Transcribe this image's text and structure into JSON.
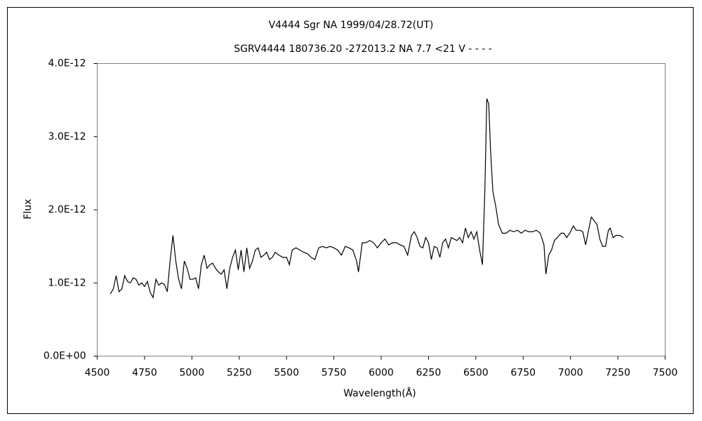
{
  "chart_data": {
    "type": "line",
    "title": "V4444 Sgr    NA    1999/04/28.72(UT)",
    "subtitle": "SGRV4444 180736.20 -272013.2 NA 7.7 <21 V - - - -",
    "x_label": "Wavelength(Å)",
    "y_label": "Flux",
    "xlim": [
      4500,
      7500
    ],
    "xticks": [
      4500,
      4750,
      5000,
      5250,
      5500,
      5750,
      6000,
      6250,
      6500,
      6750,
      7000,
      7250,
      7500
    ],
    "ylim": [
      0,
      4e-12
    ],
    "yticks": [
      {
        "value": 0,
        "label": "0.0E+00"
      },
      {
        "value": 1e-12,
        "label": "1.0E-12"
      },
      {
        "value": 2e-12,
        "label": "2.0E-12"
      },
      {
        "value": 3e-12,
        "label": "3.0E-12"
      },
      {
        "value": 4e-12,
        "label": "4.0E-12"
      }
    ],
    "grid": false,
    "series": [
      {
        "color": "#000000",
        "x": [
          4570,
          4585,
          4600,
          4615,
          4630,
          4645,
          4660,
          4675,
          4690,
          4705,
          4720,
          4735,
          4750,
          4765,
          4780,
          4795,
          4810,
          4825,
          4840,
          4855,
          4870,
          4885,
          4900,
          4915,
          4930,
          4945,
          4960,
          4975,
          4990,
          5005,
          5020,
          5035,
          5050,
          5065,
          5080,
          5095,
          5110,
          5125,
          5140,
          5155,
          5170,
          5185,
          5200,
          5215,
          5230,
          5245,
          5260,
          5275,
          5290,
          5305,
          5320,
          5335,
          5350,
          5365,
          5380,
          5395,
          5410,
          5425,
          5440,
          5460,
          5480,
          5500,
          5515,
          5530,
          5550,
          5570,
          5590,
          5610,
          5630,
          5650,
          5670,
          5690,
          5710,
          5730,
          5750,
          5770,
          5790,
          5810,
          5830,
          5850,
          5870,
          5880,
          5900,
          5920,
          5940,
          5960,
          5980,
          6000,
          6020,
          6040,
          6060,
          6080,
          6100,
          6120,
          6140,
          6160,
          6175,
          6190,
          6205,
          6220,
          6235,
          6250,
          6265,
          6280,
          6295,
          6310,
          6325,
          6340,
          6355,
          6370,
          6385,
          6400,
          6415,
          6430,
          6445,
          6460,
          6475,
          6490,
          6505,
          6520,
          6535,
          6548,
          6558,
          6568,
          6578,
          6590,
          6605,
          6620,
          6640,
          6660,
          6680,
          6700,
          6720,
          6740,
          6760,
          6780,
          6800,
          6820,
          6840,
          6860,
          6870,
          6885,
          6900,
          6915,
          6930,
          6950,
          6965,
          6980,
          7000,
          7015,
          7030,
          7050,
          7065,
          7080,
          7100,
          7110,
          7125,
          7140,
          7155,
          7170,
          7185,
          7200,
          7210,
          7225,
          7240,
          7260,
          7280
        ],
        "values": [
          8.5e-13,
          9.2e-13,
          1.1e-12,
          8.8e-13,
          9.2e-13,
          1.1e-12,
          1.02e-12,
          1e-12,
          1.07e-12,
          1.05e-12,
          9.7e-13,
          1e-12,
          9.5e-13,
          1.02e-12,
          8.7e-13,
          8e-13,
          1.05e-12,
          9.7e-13,
          1e-12,
          9.8e-13,
          8.8e-13,
          1.3e-12,
          1.65e-12,
          1.3e-12,
          1.05e-12,
          9.2e-13,
          1.3e-12,
          1.2e-12,
          1.05e-12,
          1.05e-12,
          1.07e-12,
          9.2e-13,
          1.25e-12,
          1.38e-12,
          1.2e-12,
          1.25e-12,
          1.27e-12,
          1.2e-12,
          1.15e-12,
          1.12e-12,
          1.18e-12,
          9.2e-13,
          1.2e-12,
          1.35e-12,
          1.45e-12,
          1.18e-12,
          1.45e-12,
          1.15e-12,
          1.48e-12,
          1.2e-12,
          1.3e-12,
          1.45e-12,
          1.48e-12,
          1.35e-12,
          1.38e-12,
          1.42e-12,
          1.32e-12,
          1.35e-12,
          1.42e-12,
          1.38e-12,
          1.35e-12,
          1.35e-12,
          1.25e-12,
          1.45e-12,
          1.48e-12,
          1.45e-12,
          1.42e-12,
          1.4e-12,
          1.35e-12,
          1.32e-12,
          1.48e-12,
          1.5e-12,
          1.48e-12,
          1.5e-12,
          1.48e-12,
          1.45e-12,
          1.38e-12,
          1.5e-12,
          1.48e-12,
          1.45e-12,
          1.3e-12,
          1.15e-12,
          1.55e-12,
          1.55e-12,
          1.58e-12,
          1.55e-12,
          1.48e-12,
          1.55e-12,
          1.6e-12,
          1.52e-12,
          1.55e-12,
          1.55e-12,
          1.52e-12,
          1.5e-12,
          1.38e-12,
          1.65e-12,
          1.7e-12,
          1.62e-12,
          1.5e-12,
          1.48e-12,
          1.62e-12,
          1.55e-12,
          1.32e-12,
          1.5e-12,
          1.48e-12,
          1.35e-12,
          1.55e-12,
          1.6e-12,
          1.48e-12,
          1.62e-12,
          1.6e-12,
          1.58e-12,
          1.62e-12,
          1.55e-12,
          1.75e-12,
          1.62e-12,
          1.7e-12,
          1.6e-12,
          1.7e-12,
          1.45e-12,
          1.25e-12,
          2.3e-12,
          3.52e-12,
          3.45e-12,
          2.8e-12,
          2.25e-12,
          2.05e-12,
          1.8e-12,
          1.68e-12,
          1.68e-12,
          1.72e-12,
          1.7e-12,
          1.72e-12,
          1.68e-12,
          1.72e-12,
          1.7e-12,
          1.7e-12,
          1.72e-12,
          1.68e-12,
          1.52e-12,
          1.12e-12,
          1.38e-12,
          1.45e-12,
          1.58e-12,
          1.62e-12,
          1.68e-12,
          1.68e-12,
          1.62e-12,
          1.7e-12,
          1.78e-12,
          1.72e-12,
          1.72e-12,
          1.7e-12,
          1.52e-12,
          1.78e-12,
          1.9e-12,
          1.85e-12,
          1.8e-12,
          1.6e-12,
          1.5e-12,
          1.5e-12,
          1.72e-12,
          1.75e-12,
          1.62e-12,
          1.65e-12,
          1.65e-12,
          1.62e-12
        ]
      }
    ]
  }
}
